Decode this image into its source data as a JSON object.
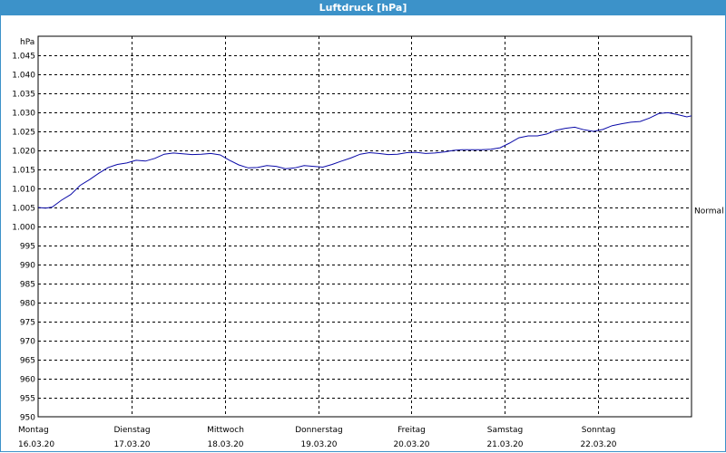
{
  "window": {
    "title": "Luftdruck [hPa]"
  },
  "chart_data": {
    "type": "line",
    "title": "Luftdruck [hPa]",
    "ylabel": "hPa",
    "ylim": [
      950,
      1050
    ],
    "yticks": [
      950,
      955,
      960,
      965,
      970,
      975,
      980,
      985,
      990,
      995,
      1000,
      1005,
      1010,
      1015,
      1020,
      1025,
      1030,
      1035,
      1040,
      1045
    ],
    "ytick_labels": [
      "950",
      "955",
      "960",
      "965",
      "970",
      "975",
      "980",
      "985",
      "990",
      "995",
      "1.000",
      "1.005",
      "1.010",
      "1.015",
      "1.020",
      "1.025",
      "1.030",
      "1.035",
      "1.040",
      "1.045"
    ],
    "xlim": [
      0,
      7
    ],
    "x_categories": [
      {
        "day": "Montag",
        "date": "16.03.20"
      },
      {
        "day": "Dienstag",
        "date": "17.03.20"
      },
      {
        "day": "Mittwoch",
        "date": "18.03.20"
      },
      {
        "day": "Donnerstag",
        "date": "19.03.20"
      },
      {
        "day": "Freitag",
        "date": "20.03.20"
      },
      {
        "day": "Samstag",
        "date": "21.03.20"
      },
      {
        "day": "Sonntag",
        "date": "22.03.20"
      }
    ],
    "reference_label": "Normal",
    "reference_value": 1004.2,
    "grid": true,
    "series": [
      {
        "color": "#0a0aa8",
        "x": [
          0,
          0.08,
          0.15,
          0.25,
          0.35,
          0.45,
          0.55,
          0.65,
          0.75,
          0.85,
          0.95,
          1.05,
          1.15,
          1.25,
          1.35,
          1.45,
          1.55,
          1.65,
          1.75,
          1.85,
          1.95,
          2.05,
          2.15,
          2.25,
          2.35,
          2.45,
          2.55,
          2.65,
          2.75,
          2.85,
          2.95,
          3.05,
          3.15,
          3.25,
          3.35,
          3.45,
          3.55,
          3.65,
          3.75,
          3.85,
          3.95,
          4.05,
          4.15,
          4.25,
          4.35,
          4.45,
          4.55,
          4.65,
          4.75,
          4.85,
          4.95,
          5.05,
          5.15,
          5.25,
          5.35,
          5.45,
          5.55,
          5.65,
          5.75,
          5.85,
          5.95,
          6.05,
          6.15,
          6.25,
          6.35,
          6.45,
          6.55,
          6.65,
          6.75,
          6.85,
          6.95,
          7.0
        ],
        "y": [
          1005.0,
          1004.8,
          1005.1,
          1006.9,
          1008.4,
          1010.8,
          1012.3,
          1014.0,
          1015.5,
          1016.3,
          1016.7,
          1017.4,
          1017.2,
          1017.9,
          1019.0,
          1019.3,
          1019.1,
          1018.9,
          1019.0,
          1019.2,
          1018.8,
          1017.4,
          1016.2,
          1015.4,
          1015.5,
          1016.0,
          1015.8,
          1015.2,
          1015.4,
          1016.0,
          1015.8,
          1015.6,
          1016.3,
          1017.2,
          1018.0,
          1019.0,
          1019.4,
          1019.2,
          1018.9,
          1019.0,
          1019.4,
          1019.5,
          1019.2,
          1019.3,
          1019.6,
          1020.0,
          1020.2,
          1020.2,
          1020.2,
          1020.3,
          1020.7,
          1021.9,
          1023.3,
          1023.8,
          1023.8,
          1024.3,
          1025.3,
          1025.8,
          1026.1,
          1025.4,
          1025.0,
          1025.5,
          1026.5,
          1027.0,
          1027.4,
          1027.6,
          1028.5,
          1029.7,
          1029.9,
          1029.4,
          1028.8,
          1029.1
        ]
      }
    ]
  }
}
